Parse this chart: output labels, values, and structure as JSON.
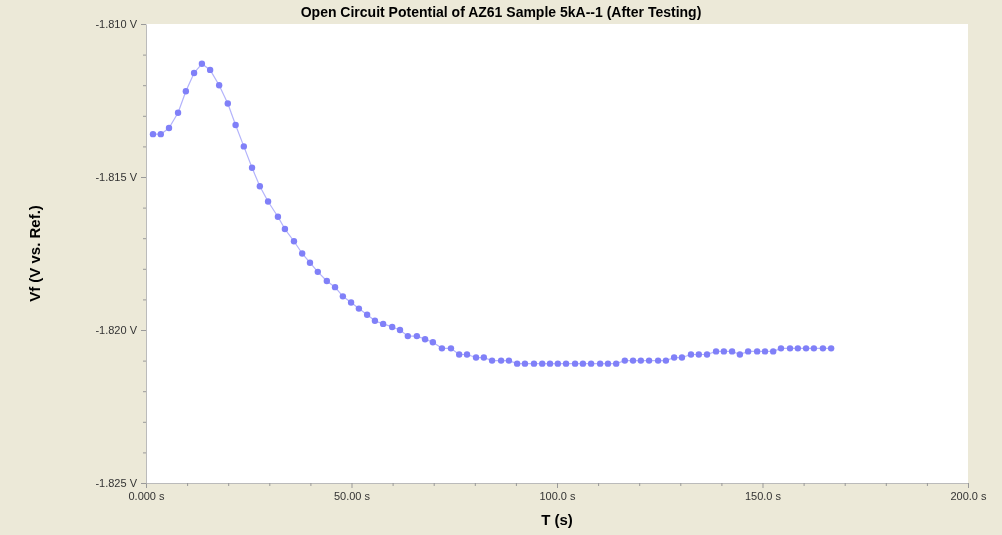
{
  "chart_data": {
    "type": "line",
    "title": "Open Circuit Potential of AZ61 Sample 5kA--1 (After Testing)",
    "xlabel": "T (s)",
    "ylabel": "Vf (V vs. Ref.)",
    "x": [
      1.7,
      3.6,
      5.6,
      7.8,
      9.7,
      11.7,
      13.6,
      15.6,
      17.8,
      19.9,
      21.8,
      23.8,
      25.8,
      27.7,
      29.7,
      32.1,
      33.8,
      36.0,
      38.0,
      39.9,
      41.8,
      44.0,
      46.0,
      47.9,
      49.9,
      51.8,
      53.8,
      55.7,
      57.7,
      59.9,
      61.8,
      63.7,
      65.9,
      67.9,
      69.8,
      72.0,
      74.2,
      76.2,
      78.1,
      80.3,
      82.2,
      84.2,
      86.4,
      88.3,
      90.3,
      92.2,
      94.4,
      96.4,
      98.3,
      100.2,
      102.2,
      104.4,
      106.3,
      108.3,
      110.5,
      112.4,
      114.4,
      116.5,
      118.5,
      120.4,
      122.4,
      124.6,
      126.5,
      128.5,
      130.4,
      132.6,
      134.5,
      136.5,
      138.7,
      140.6,
      142.6,
      144.5,
      146.5,
      148.7,
      150.6,
      152.6,
      154.5,
      156.7,
      158.6,
      160.6,
      162.5,
      164.7,
      166.7
    ],
    "series": [
      {
        "color": "#8080f8",
        "values": [
          -1.8136,
          -1.8136,
          -1.8134,
          -1.8129,
          -1.8122,
          -1.8116,
          -1.8113,
          -1.8115,
          -1.812,
          -1.8126,
          -1.8133,
          -1.814,
          -1.8147,
          -1.8153,
          -1.8158,
          -1.8163,
          -1.8167,
          -1.8171,
          -1.8175,
          -1.8178,
          -1.8181,
          -1.8184,
          -1.8186,
          -1.8189,
          -1.8191,
          -1.8193,
          -1.8195,
          -1.8197,
          -1.8198,
          -1.8199,
          -1.82,
          -1.8202,
          -1.8202,
          -1.8203,
          -1.8204,
          -1.8206,
          -1.8206,
          -1.8208,
          -1.8208,
          -1.8209,
          -1.8209,
          -1.821,
          -1.821,
          -1.821,
          -1.8211,
          -1.8211,
          -1.8211,
          -1.8211,
          -1.8211,
          -1.8211,
          -1.8211,
          -1.8211,
          -1.8211,
          -1.8211,
          -1.8211,
          -1.8211,
          -1.8211,
          -1.821,
          -1.821,
          -1.821,
          -1.821,
          -1.821,
          -1.821,
          -1.8209,
          -1.8209,
          -1.8208,
          -1.8208,
          -1.8208,
          -1.8207,
          -1.8207,
          -1.8207,
          -1.8208,
          -1.8207,
          -1.8207,
          -1.8207,
          -1.8207,
          -1.8206,
          -1.8206,
          -1.8206,
          -1.8206,
          -1.8206,
          -1.8206,
          -1.8206
        ]
      }
    ],
    "xlim": [
      0,
      200
    ],
    "xticks": [
      {
        "value": 0,
        "label": "0.000 s"
      },
      {
        "value": 10,
        "label": null
      },
      {
        "value": 20,
        "label": null
      },
      {
        "value": 30,
        "label": null
      },
      {
        "value": 40,
        "label": null
      },
      {
        "value": 50,
        "label": "50.00 s"
      },
      {
        "value": 60,
        "label": null
      },
      {
        "value": 70,
        "label": null
      },
      {
        "value": 80,
        "label": null
      },
      {
        "value": 90,
        "label": null
      },
      {
        "value": 100,
        "label": "100.0 s"
      },
      {
        "value": 110,
        "label": null
      },
      {
        "value": 120,
        "label": null
      },
      {
        "value": 130,
        "label": null
      },
      {
        "value": 140,
        "label": null
      },
      {
        "value": 150,
        "label": "150.0 s"
      },
      {
        "value": 160,
        "label": null
      },
      {
        "value": 170,
        "label": null
      },
      {
        "value": 180,
        "label": null
      },
      {
        "value": 190,
        "label": null
      },
      {
        "value": 200,
        "label": "200.0 s"
      }
    ],
    "ylim": [
      -1.825,
      -1.81
    ],
    "yticks": [
      {
        "value": -1.825,
        "label": "-1.825 V"
      },
      {
        "value": -1.824,
        "label": null
      },
      {
        "value": -1.823,
        "label": null
      },
      {
        "value": -1.822,
        "label": null
      },
      {
        "value": -1.821,
        "label": null
      },
      {
        "value": -1.82,
        "label": "-1.820 V"
      },
      {
        "value": -1.819,
        "label": null
      },
      {
        "value": -1.818,
        "label": null
      },
      {
        "value": -1.817,
        "label": null
      },
      {
        "value": -1.816,
        "label": null
      },
      {
        "value": -1.815,
        "label": "-1.815 V"
      },
      {
        "value": -1.814,
        "label": null
      },
      {
        "value": -1.813,
        "label": null
      },
      {
        "value": -1.812,
        "label": null
      },
      {
        "value": -1.811,
        "label": null
      },
      {
        "value": -1.81,
        "label": "-1.810 V"
      }
    ],
    "grid": false,
    "marker": "circle",
    "line_style": "solid"
  }
}
